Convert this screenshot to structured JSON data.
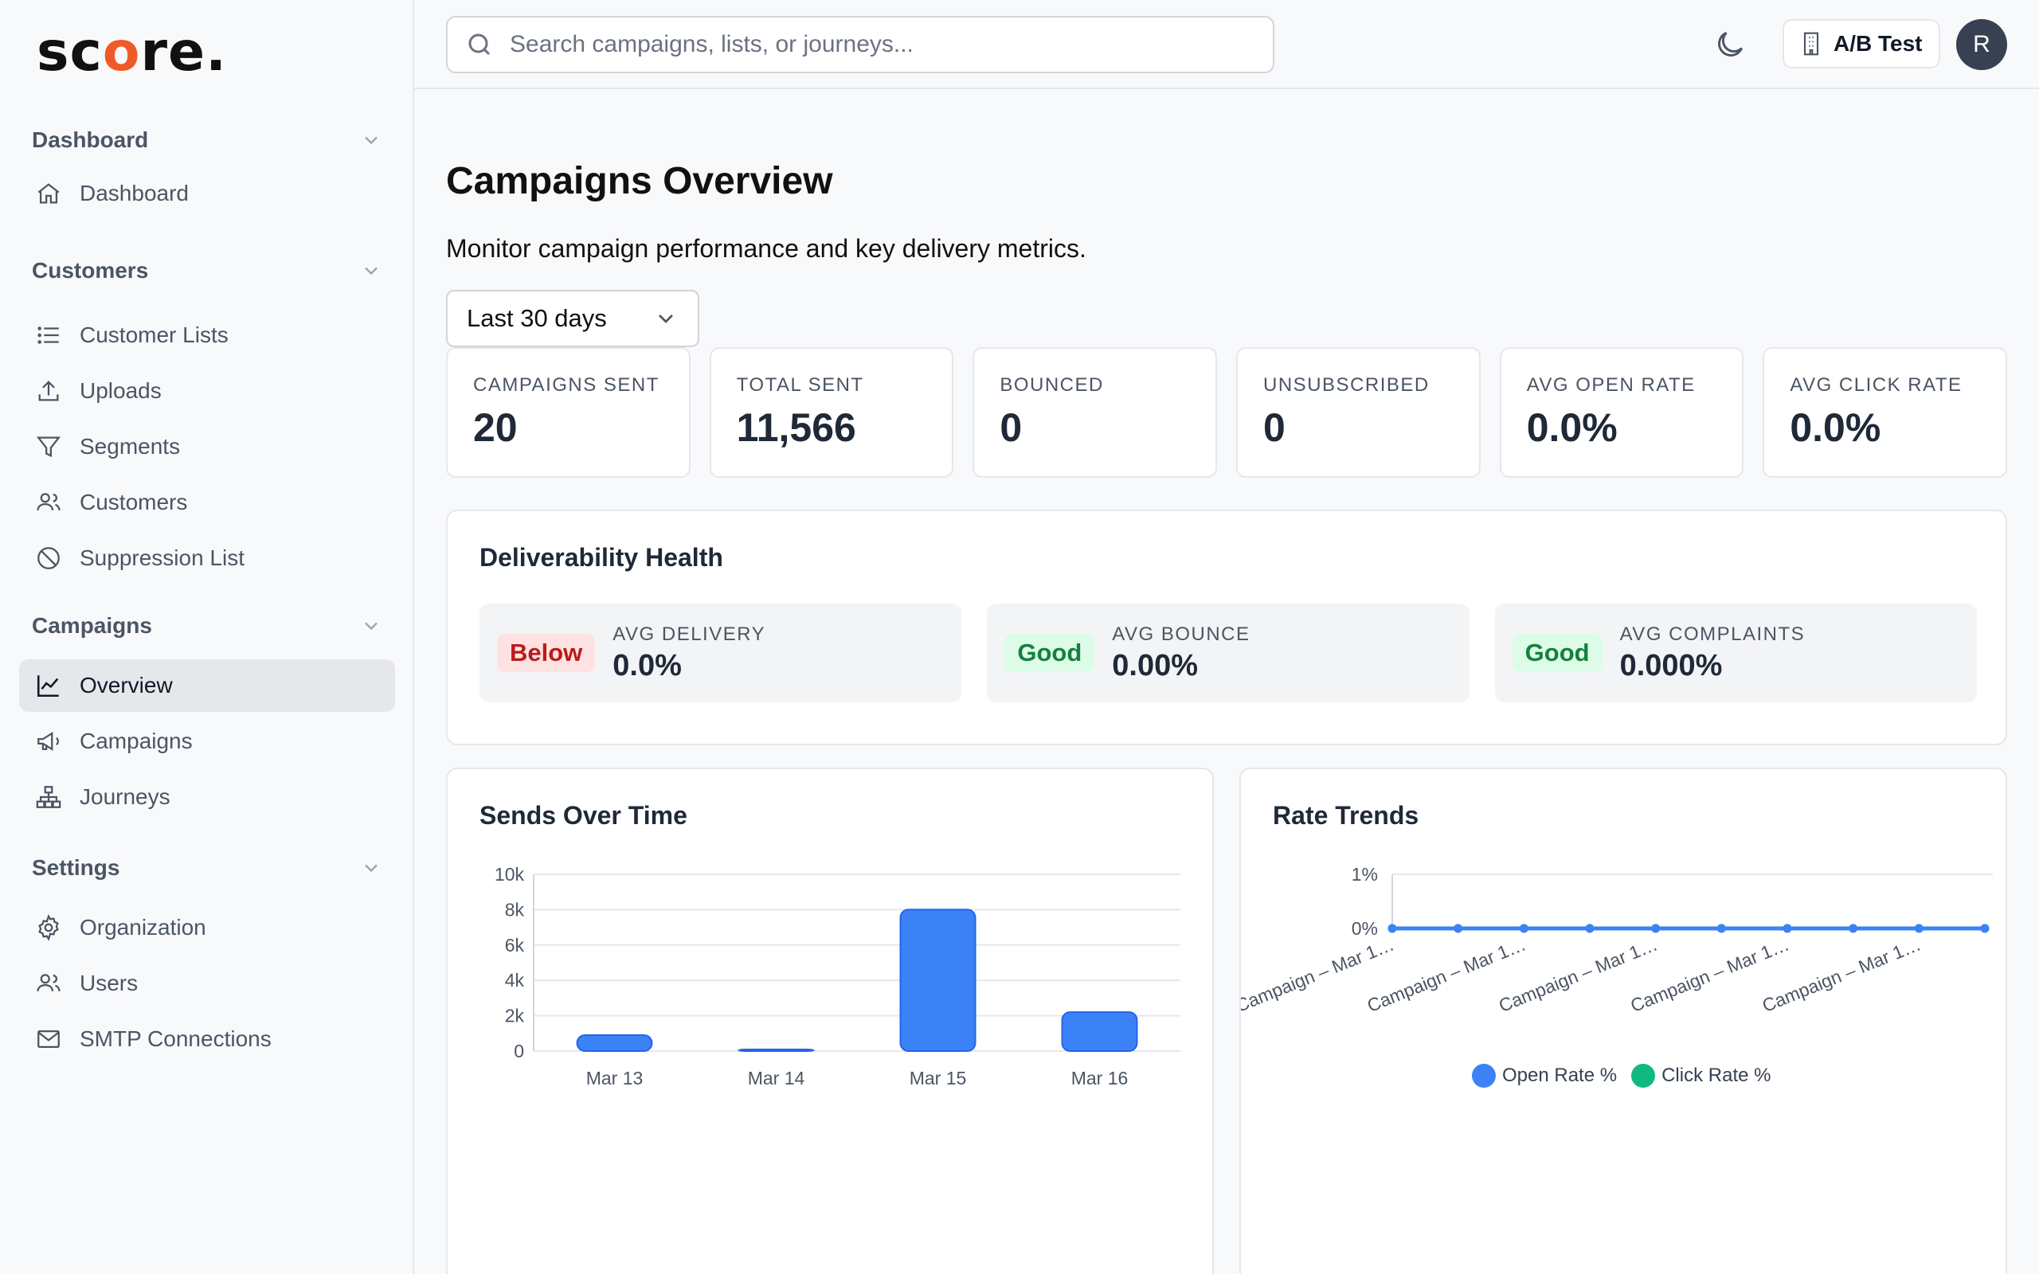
{
  "brand": {
    "logo_pre": "sc",
    "logo_o": "o",
    "logo_post": "re."
  },
  "sidebar": {
    "groups": [
      {
        "label": "Dashboard",
        "items": [
          {
            "label": "Dashboard",
            "icon": "home-icon"
          }
        ]
      },
      {
        "label": "Customers",
        "items": [
          {
            "label": "Customer Lists",
            "icon": "list-icon"
          },
          {
            "label": "Uploads",
            "icon": "upload-icon"
          },
          {
            "label": "Segments",
            "icon": "filter-icon"
          },
          {
            "label": "Customers",
            "icon": "users-icon"
          },
          {
            "label": "Suppression List",
            "icon": "ban-icon"
          }
        ]
      },
      {
        "label": "Campaigns",
        "items": [
          {
            "label": "Overview",
            "icon": "chart-line-icon",
            "active": true
          },
          {
            "label": "Campaigns",
            "icon": "megaphone-icon"
          },
          {
            "label": "Journeys",
            "icon": "sitemap-icon"
          }
        ]
      },
      {
        "label": "Settings",
        "items": [
          {
            "label": "Organization",
            "icon": "gear-icon"
          },
          {
            "label": "Users",
            "icon": "users-icon"
          },
          {
            "label": "SMTP Connections",
            "icon": "mail-icon"
          }
        ]
      }
    ]
  },
  "header": {
    "search_placeholder": "Search campaigns, lists, or journeys...",
    "org_label": "A/B Test",
    "avatar_initial": "R"
  },
  "main": {
    "title": "Campaigns Overview",
    "subtitle": "Monitor campaign performance and key delivery metrics.",
    "range": "Last 30 days",
    "kpis": [
      {
        "label": "CAMPAIGNS SENT",
        "value": "20"
      },
      {
        "label": "TOTAL SENT",
        "value": "11,566"
      },
      {
        "label": "BOUNCED",
        "value": "0"
      },
      {
        "label": "UNSUBSCRIBED",
        "value": "0"
      },
      {
        "label": "AVG OPEN RATE",
        "value": "0.0%"
      },
      {
        "label": "AVG CLICK RATE",
        "value": "0.0%"
      }
    ],
    "health": {
      "title": "Deliverability Health",
      "items": [
        {
          "badge": "Below",
          "status": "bad",
          "label": "AVG DELIVERY",
          "value": "0.0%"
        },
        {
          "badge": "Good",
          "status": "good",
          "label": "AVG BOUNCE",
          "value": "0.00%"
        },
        {
          "badge": "Good",
          "status": "good",
          "label": "AVG COMPLAINTS",
          "value": "0.000%"
        }
      ]
    },
    "sends_title": "Sends Over Time",
    "trends_title": "Rate Trends"
  },
  "colors": {
    "accent": "#3b82f6",
    "secondary": "#10b981",
    "logo_o": "#f05a28"
  },
  "chart_data": [
    {
      "type": "bar",
      "title": "Sends Over Time",
      "categories": [
        "Mar 13",
        "Mar 14",
        "Mar 15",
        "Mar 16"
      ],
      "values": [
        900,
        80,
        8000,
        2200
      ],
      "yticks": [
        "0",
        "2k",
        "4k",
        "6k",
        "8k",
        "10k"
      ],
      "ylim": [
        0,
        10000
      ],
      "grid": true
    },
    {
      "type": "line",
      "title": "Rate Trends",
      "x_labels": [
        "Campaign – Mar 1…",
        "Campaign – Mar 1…",
        "Campaign – Mar 1…",
        "Campaign – Mar 1…",
        "Campaign – Mar 1…"
      ],
      "point_count": 10,
      "yticks": [
        "0%",
        "1%"
      ],
      "ylim": [
        0,
        1
      ],
      "series": [
        {
          "name": "Open Rate %",
          "values": [
            0,
            0,
            0,
            0,
            0,
            0,
            0,
            0,
            0,
            0
          ]
        },
        {
          "name": "Click Rate %",
          "values": [
            0,
            0,
            0,
            0,
            0,
            0,
            0,
            0,
            0,
            0
          ]
        }
      ],
      "legend": "bottom"
    }
  ]
}
